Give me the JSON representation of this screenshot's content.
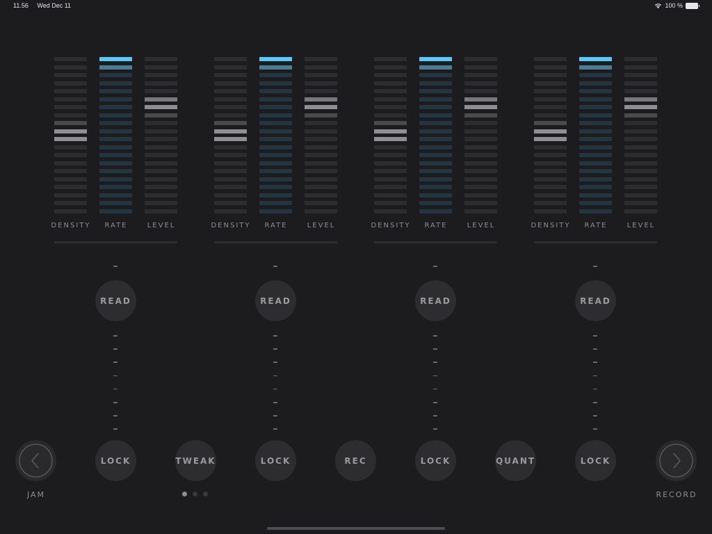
{
  "status_bar": {
    "time": "11.56",
    "date": "Wed Dec 11",
    "wifi_icon": "wifi-icon",
    "battery_text": "100 %",
    "battery_icon": "battery-icon"
  },
  "colors": {
    "background": "#1c1c1e",
    "bar_off": "#2d2d30",
    "rate_off": "#223540",
    "rate_active": "#5ac8fa",
    "rate_mid": "#4a7d96",
    "highlight": "#8e8e93",
    "highlight_bright": "#9a9a9e",
    "button": "#2d2d30"
  },
  "meter": {
    "bar_count": 20,
    "density_highlights": {
      "8": "#4a4a4d",
      "9": "#8e8e93",
      "10": "#8e8e93"
    },
    "rate_highlights": {
      "0": "#5ac8fa",
      "1": "#4a7d96"
    },
    "level_highlights": {
      "5": "#7a7a7e",
      "6": "#8e8e93",
      "7": "#4a4a4d"
    }
  },
  "channels": [
    {
      "labels": {
        "density": "DENSITY",
        "rate": "RATE",
        "level": "LEVEL"
      },
      "read": "READ",
      "lock": "LOCK"
    },
    {
      "labels": {
        "density": "DENSITY",
        "rate": "RATE",
        "level": "LEVEL"
      },
      "read": "READ",
      "lock": "LOCK"
    },
    {
      "labels": {
        "density": "DENSITY",
        "rate": "RATE",
        "level": "LEVEL"
      },
      "read": "READ",
      "lock": "LOCK"
    },
    {
      "labels": {
        "density": "DENSITY",
        "rate": "RATE",
        "level": "LEVEL"
      },
      "read": "READ",
      "lock": "LOCK"
    }
  ],
  "bottom": {
    "jam": {
      "label": "JAM",
      "icon": "chevron-left-icon"
    },
    "tweak": "TWEAK",
    "rec": "REC",
    "quant": "QUANT",
    "record": {
      "label": "RECORD",
      "icon": "chevron-right-icon"
    },
    "page_dots": {
      "count": 3,
      "active": 0
    }
  }
}
